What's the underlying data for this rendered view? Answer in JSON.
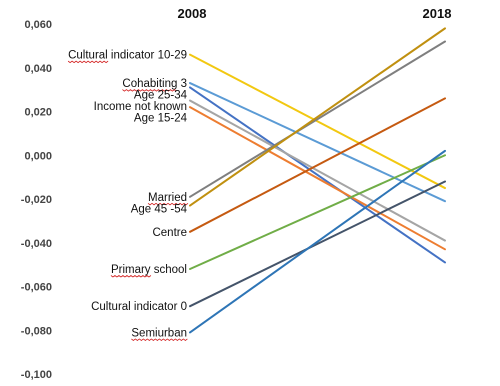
{
  "chart_data": {
    "type": "line",
    "title": "",
    "xlabel": "",
    "ylabel": "",
    "x": [
      "2008",
      "2018"
    ],
    "ylim": [
      -0.1,
      0.06
    ],
    "yticks": [
      "0,060",
      "0,040",
      "0,020",
      "0,000",
      "-0,020",
      "-0,040",
      "-0,060",
      "-0,080",
      "-0,100"
    ],
    "ytick_values": [
      0.06,
      0.04,
      0.02,
      0.0,
      -0.02,
      -0.04,
      -0.06,
      -0.08,
      -0.1
    ],
    "grid": false,
    "legend": "none",
    "series": [
      {
        "name": "Cultural indicator 10-29",
        "values": [
          0.046,
          -0.015
        ],
        "color": "#f2c811",
        "underline": true
      },
      {
        "name": "Cohabiting 3",
        "values": [
          0.033,
          -0.021
        ],
        "color": "#5b9bd5",
        "underline": true
      },
      {
        "name": "Age 25-34",
        "values": [
          0.031,
          -0.049
        ],
        "color": "#4472c4",
        "underline": false
      },
      {
        "name": "Income not known",
        "values": [
          0.025,
          -0.039
        ],
        "color": "#a5a5a5",
        "underline": false
      },
      {
        "name": "Age 15-24",
        "values": [
          0.022,
          -0.043
        ],
        "color": "#ed7d31",
        "underline": false
      },
      {
        "name": "Married",
        "values": [
          -0.019,
          0.052
        ],
        "color": "#7f7f7f",
        "underline": true
      },
      {
        "name": "Age 45 -54",
        "values": [
          -0.023,
          0.058
        ],
        "color": "#c09010",
        "underline": false
      },
      {
        "name": "Centre",
        "values": [
          -0.035,
          0.026
        ],
        "color": "#c55a11",
        "underline": false
      },
      {
        "name": "Primary school",
        "values": [
          -0.052,
          0.0
        ],
        "color": "#70ad47",
        "underline": true
      },
      {
        "name": "Cultural indicator 0",
        "values": [
          -0.069,
          -0.012
        ],
        "color": "#44546a",
        "underline": false
      },
      {
        "name": "Semiurban",
        "values": [
          -0.081,
          0.002
        ],
        "color": "#2e75b6",
        "underline": true
      }
    ]
  }
}
